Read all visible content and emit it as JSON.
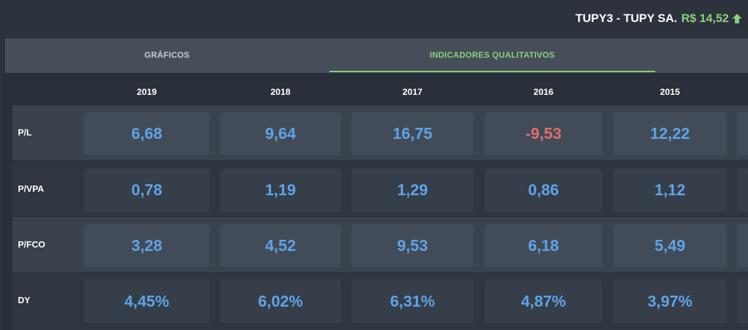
{
  "header": {
    "ticker": "TUPY3 - TUPY SA.",
    "price": "R$ 14,52",
    "trend_icon": "arrow-up-icon"
  },
  "tabs": [
    {
      "label": "GRÁFICOS",
      "active": false
    },
    {
      "label": "INDICADORES QUALITATIVOS",
      "active": true
    }
  ],
  "years": [
    "2019",
    "2018",
    "2017",
    "2016",
    "2015"
  ],
  "rows": [
    {
      "label": "P/L",
      "values": [
        "6,68",
        "9,64",
        "16,75",
        "-9,53",
        "12,22"
      ]
    },
    {
      "label": "P/VPA",
      "values": [
        "0,78",
        "1,19",
        "1,29",
        "0,86",
        "1,12"
      ]
    },
    {
      "label": "P/FCO",
      "values": [
        "3,28",
        "4,52",
        "9,53",
        "6,18",
        "5,49"
      ]
    },
    {
      "label": "DY",
      "values": [
        "4,45%",
        "6,02%",
        "6,31%",
        "4,87%",
        "3,97%"
      ]
    }
  ],
  "colors": {
    "positive": "#5fa3e8",
    "negative": "#e36b6b",
    "accent": "#8ed07c"
  }
}
